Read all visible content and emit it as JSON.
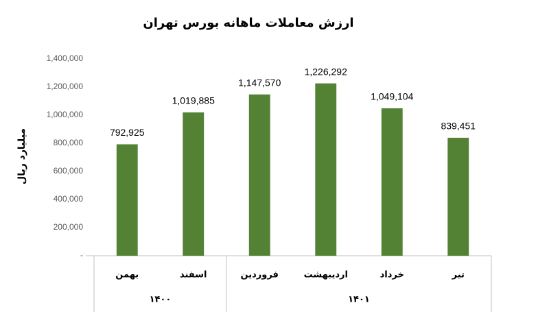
{
  "chart_data": {
    "type": "bar",
    "title": "ارزش معاملات ماهانه بورس تهران",
    "y_label": "میلیارد ریال",
    "categories": [
      "بهمن",
      "اسفند",
      "فروردین",
      "اردیبهشت",
      "خرداد",
      "تیر"
    ],
    "groups": [
      {
        "label": "۱۴۰۰",
        "size": 2
      },
      {
        "label": "۱۴۰۱",
        "size": 4
      }
    ],
    "values": [
      792925,
      1019885,
      1147570,
      1226292,
      1049104,
      839451
    ],
    "value_labels": [
      "792,925",
      "1,019,885",
      "1,147,570",
      "1,226,292",
      "1,049,104",
      "839,451"
    ],
    "color": "#548235",
    "ylim": [
      0,
      1400000
    ],
    "yticks": [
      {
        "value": 0,
        "label": "-"
      },
      {
        "value": 200000,
        "label": "200,000"
      },
      {
        "value": 400000,
        "label": "400,000"
      },
      {
        "value": 600000,
        "label": "600,000"
      },
      {
        "value": 800000,
        "label": "800,000"
      },
      {
        "value": 1000000,
        "label": "1,000,000"
      },
      {
        "value": 1200000,
        "label": "1,200,000"
      },
      {
        "value": 1400000,
        "label": "1,400,000"
      }
    ],
    "grid": false
  }
}
